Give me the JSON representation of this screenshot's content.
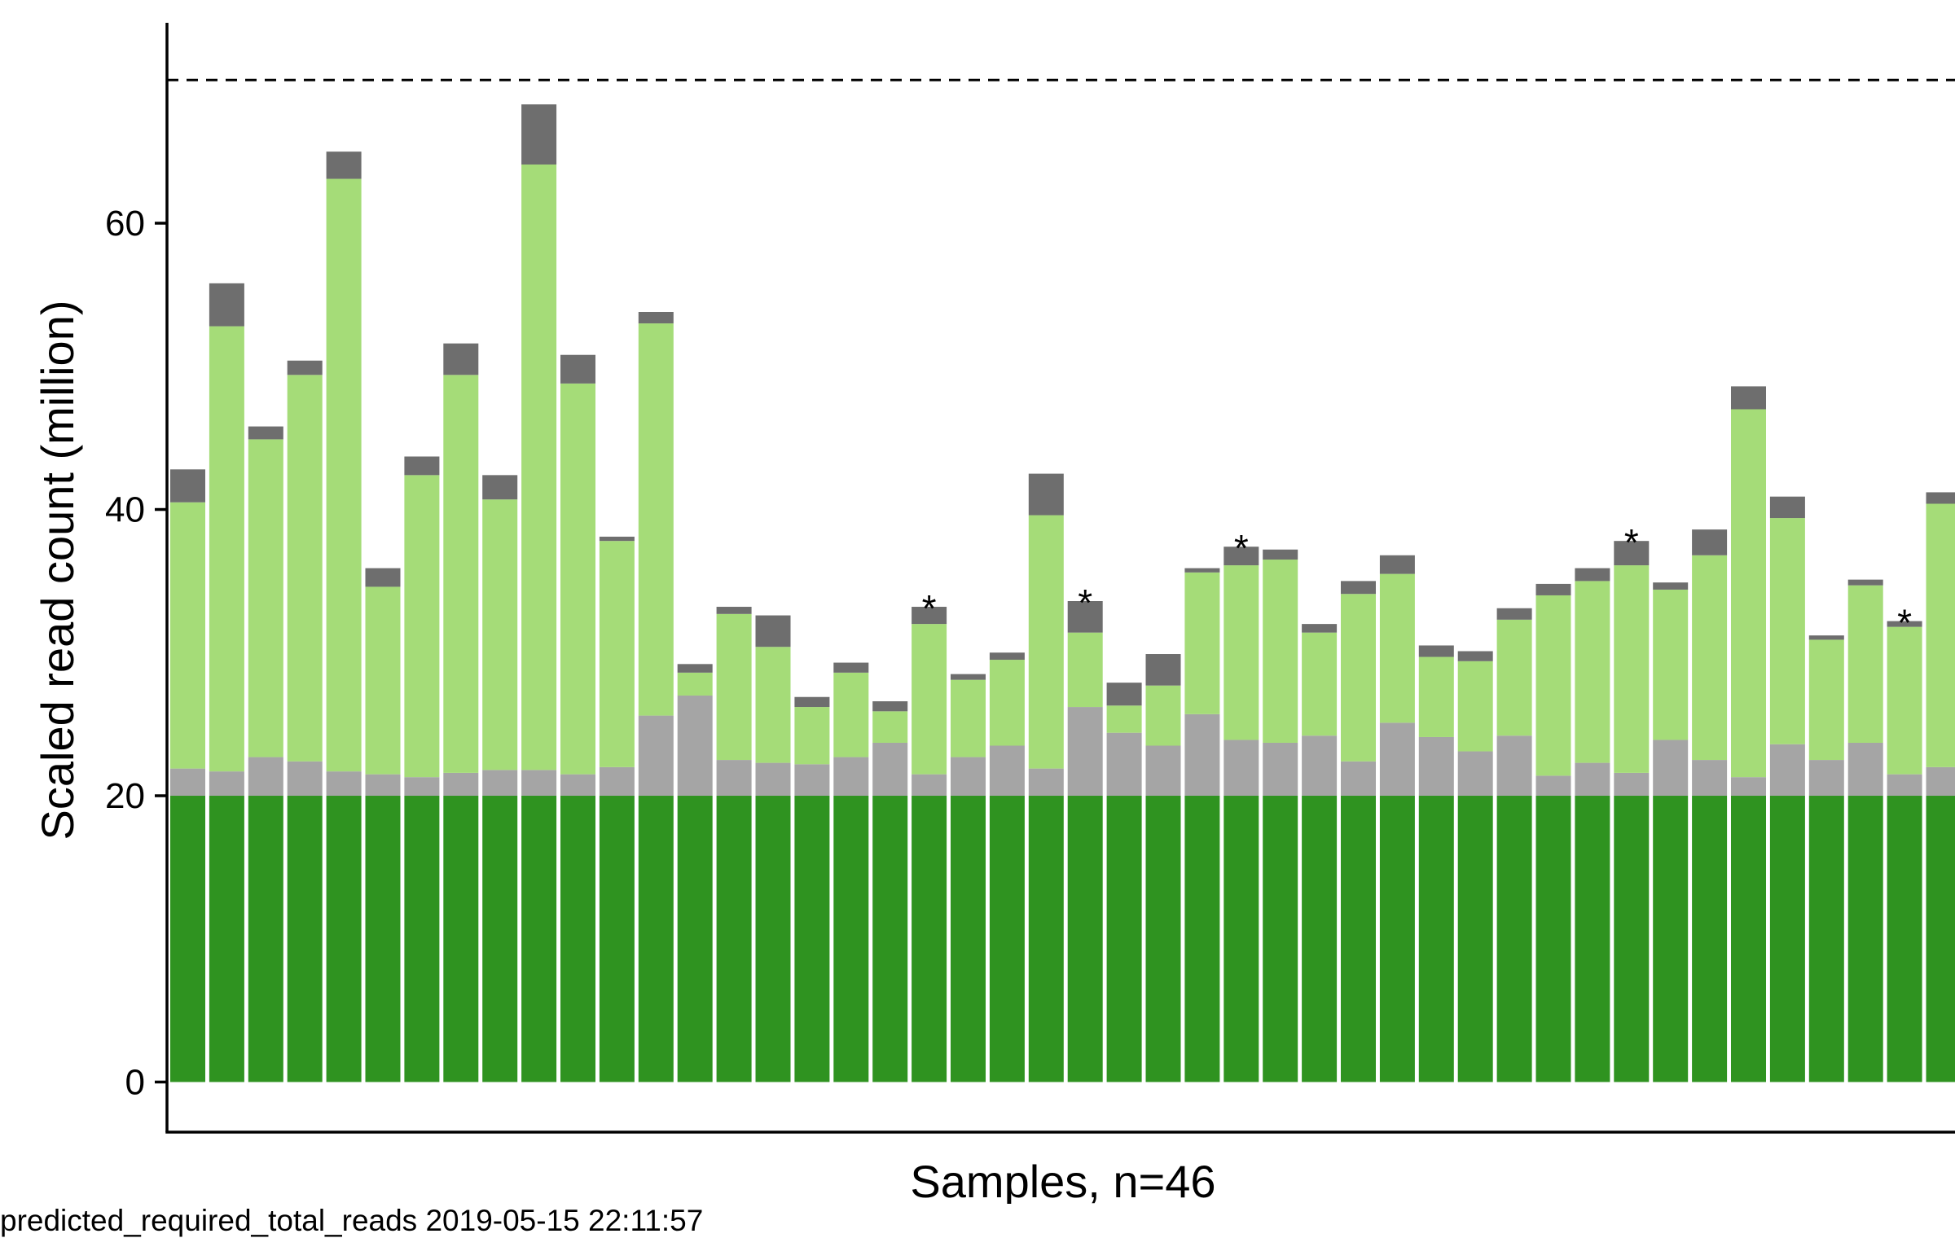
{
  "chart_data": {
    "type": "bar",
    "stacked": true,
    "xlabel": "Samples, n=46",
    "ylabel": "Scaled read count (million)",
    "ylim": [
      -3.5,
      74
    ],
    "yticks": [
      "0",
      "20",
      "40",
      "60"
    ],
    "yticks_values": [
      0,
      20,
      40,
      60
    ],
    "reference_line": {
      "value": 70,
      "style": "dashed"
    },
    "grid": false,
    "legend": "none",
    "colors": {
      "base": "#2f9320",
      "grey": "#a5a5a5",
      "light": "#a5dc78",
      "dark": "#6e6e6e"
    },
    "bars": [
      {
        "values": [
          20,
          1.9,
          18.6,
          2.3
        ],
        "star": false
      },
      {
        "values": [
          20,
          1.7,
          31.1,
          3.0
        ],
        "star": false
      },
      {
        "values": [
          20,
          2.7,
          22.2,
          0.9
        ],
        "star": false
      },
      {
        "values": [
          20,
          2.4,
          27.0,
          1.0
        ],
        "star": false
      },
      {
        "values": [
          20,
          1.7,
          41.4,
          1.9
        ],
        "star": false
      },
      {
        "values": [
          20,
          1.5,
          13.1,
          1.3
        ],
        "star": false
      },
      {
        "values": [
          20,
          1.3,
          21.1,
          1.3
        ],
        "star": false
      },
      {
        "values": [
          20,
          1.6,
          27.8,
          2.2
        ],
        "star": false
      },
      {
        "values": [
          20,
          1.8,
          18.9,
          1.7
        ],
        "star": false
      },
      {
        "values": [
          20,
          1.8,
          42.3,
          4.2
        ],
        "star": false
      },
      {
        "values": [
          20,
          1.5,
          27.3,
          2.0
        ],
        "star": false
      },
      {
        "values": [
          20,
          2.0,
          15.8,
          0.3
        ],
        "star": false
      },
      {
        "values": [
          20,
          5.6,
          27.4,
          0.8
        ],
        "star": false
      },
      {
        "values": [
          20,
          7.0,
          1.6,
          0.6
        ],
        "star": false
      },
      {
        "values": [
          20,
          2.5,
          10.2,
          0.5
        ],
        "star": false
      },
      {
        "values": [
          20,
          2.3,
          8.1,
          2.2
        ],
        "star": false
      },
      {
        "values": [
          20,
          2.2,
          4.0,
          0.7
        ],
        "star": false
      },
      {
        "values": [
          20,
          2.7,
          5.9,
          0.7
        ],
        "star": false
      },
      {
        "values": [
          20,
          3.7,
          2.2,
          0.7
        ],
        "star": false
      },
      {
        "values": [
          20,
          1.5,
          10.5,
          1.2
        ],
        "star": true
      },
      {
        "values": [
          20,
          2.7,
          5.4,
          0.4
        ],
        "star": false
      },
      {
        "values": [
          20,
          3.5,
          6.0,
          0.5
        ],
        "star": false
      },
      {
        "values": [
          20,
          1.9,
          17.7,
          2.9
        ],
        "star": false
      },
      {
        "values": [
          20,
          6.2,
          5.2,
          2.2
        ],
        "star": true
      },
      {
        "values": [
          20,
          4.4,
          1.9,
          1.6
        ],
        "star": false
      },
      {
        "values": [
          20,
          3.5,
          4.2,
          2.2
        ],
        "star": false
      },
      {
        "values": [
          20,
          5.7,
          9.9,
          0.3
        ],
        "star": false
      },
      {
        "values": [
          20,
          3.9,
          12.2,
          1.3
        ],
        "star": true
      },
      {
        "values": [
          20,
          3.7,
          12.8,
          0.7
        ],
        "star": false
      },
      {
        "values": [
          20,
          4.2,
          7.2,
          0.6
        ],
        "star": false
      },
      {
        "values": [
          20,
          2.4,
          11.7,
          0.9
        ],
        "star": false
      },
      {
        "values": [
          20,
          5.1,
          10.4,
          1.3
        ],
        "star": false
      },
      {
        "values": [
          20,
          4.1,
          5.6,
          0.8
        ],
        "star": false
      },
      {
        "values": [
          20,
          3.1,
          6.3,
          0.7
        ],
        "star": false
      },
      {
        "values": [
          20,
          4.2,
          8.1,
          0.8
        ],
        "star": false
      },
      {
        "values": [
          20,
          1.4,
          12.6,
          0.8
        ],
        "star": false
      },
      {
        "values": [
          20,
          2.3,
          12.7,
          0.9
        ],
        "star": false
      },
      {
        "values": [
          20,
          1.6,
          14.5,
          1.7
        ],
        "star": true
      },
      {
        "values": [
          20,
          3.9,
          10.5,
          0.5
        ],
        "star": false
      },
      {
        "values": [
          20,
          2.5,
          14.3,
          1.8
        ],
        "star": false
      },
      {
        "values": [
          20,
          1.3,
          25.7,
          1.6
        ],
        "star": false
      },
      {
        "values": [
          20,
          3.6,
          15.8,
          1.5
        ],
        "star": false
      },
      {
        "values": [
          20,
          2.5,
          8.4,
          0.3
        ],
        "star": false
      },
      {
        "values": [
          20,
          3.7,
          11.0,
          0.4
        ],
        "star": false
      },
      {
        "values": [
          20,
          1.5,
          10.3,
          0.4
        ],
        "star": true
      },
      {
        "values": [
          20,
          2.0,
          18.4,
          0.8
        ],
        "star": false
      }
    ]
  },
  "footer_text": "predicted_required_total_reads 2019-05-15 22:11:57"
}
